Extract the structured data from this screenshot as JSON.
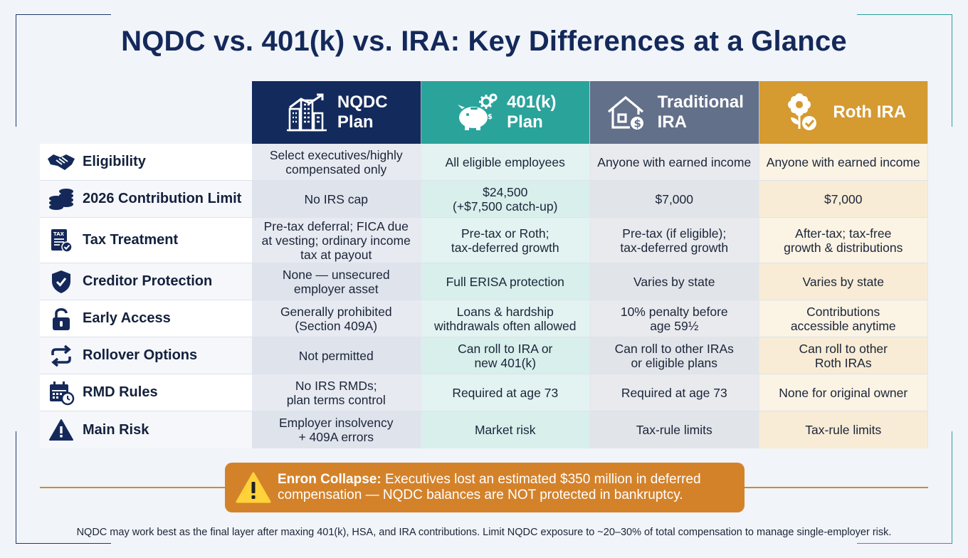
{
  "title": "NQDC vs. 401(k) vs. IRA: Key Differences at a Glance",
  "colors": {
    "nqdc": "#132a5c",
    "k401": "#2aa39b",
    "traditional_ira": "#63708a",
    "roth_ira": "#d59a30",
    "alert": "#d4822a"
  },
  "columns": [
    {
      "key": "nqdc",
      "label": "NQDC\nPlan",
      "icon": "city-growth-icon"
    },
    {
      "key": "k401",
      "label": "401(k)\nPlan",
      "icon": "piggy-bank-gears-icon"
    },
    {
      "key": "trad",
      "label": "Traditional\nIRA",
      "icon": "house-dollar-icon"
    },
    {
      "key": "roth",
      "label": "Roth IRA",
      "icon": "flower-check-icon"
    }
  ],
  "rows": [
    {
      "label": "Eligibility",
      "icon": "handshake-icon",
      "values": [
        "Select executives/highly\ncompensated only",
        "All eligible employees",
        "Anyone with earned income",
        "Anyone with earned income"
      ]
    },
    {
      "label": "2026 Contribution Limit",
      "icon": "coin-stack-icon",
      "values": [
        "No IRS cap",
        "$24,500\n(+$7,500 catch-up)",
        "$7,000",
        "$7,000"
      ]
    },
    {
      "label": "Tax Treatment",
      "icon": "tax-document-icon",
      "values": [
        "Pre-tax deferral; FICA due\nat vesting; ordinary income\ntax at payout",
        "Pre-tax or Roth;\ntax-deferred growth",
        "Pre-tax (if eligible);\ntax-deferred growth",
        "After-tax; tax-free\ngrowth & distributions"
      ]
    },
    {
      "label": "Creditor Protection",
      "icon": "shield-check-icon",
      "values": [
        "None — unsecured\nemployer asset",
        "Full ERISA protection",
        "Varies by state",
        "Varies by state"
      ]
    },
    {
      "label": "Early Access",
      "icon": "unlocked-padlock-icon",
      "values": [
        "Generally prohibited\n(Section 409A)",
        "Loans & hardship\nwithdrawals often allowed",
        "10% penalty before\nage 59½",
        "Contributions\naccessible anytime"
      ]
    },
    {
      "label": "Rollover Options",
      "icon": "rollover-arrows-icon",
      "values": [
        "Not permitted",
        "Can roll to IRA or\nnew 401(k)",
        "Can roll to other IRAs\nor eligible plans",
        "Can roll to other\nRoth IRAs"
      ]
    },
    {
      "label": "RMD Rules",
      "icon": "calendar-clock-icon",
      "values": [
        "No IRS RMDs;\nplan terms control",
        "Required at age 73",
        "Required at age 73",
        "None for original owner"
      ]
    },
    {
      "label": "Main Risk",
      "icon": "warning-triangle-icon",
      "values": [
        "Employer insolvency\n+ 409A errors",
        "Market risk",
        "Tax-rule limits",
        "Tax-rule limits"
      ]
    }
  ],
  "alert": {
    "icon": "warning-triangle-icon",
    "heading": "Enron Collapse:",
    "text": " Executives lost an estimated $350 million in deferred compensation — NQDC balances are NOT protected in bankruptcy."
  },
  "footnote": "NQDC may work best as the final layer after maxing 401(k), HSA, and IRA contributions. Limit NQDC exposure to ~20–30% of total compensation to manage single-employer risk."
}
